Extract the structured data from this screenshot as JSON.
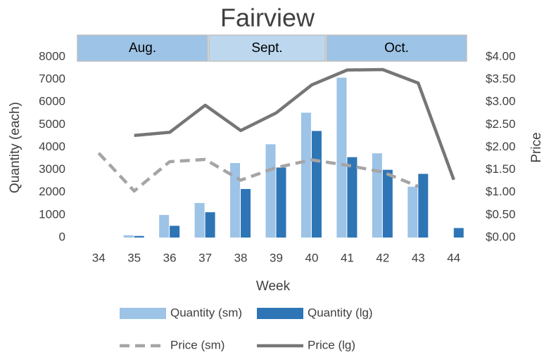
{
  "chart_data": {
    "type": "bar-line",
    "title": "Fairview",
    "month_bands": [
      {
        "label": "Aug.",
        "color": "#9dc3e6"
      },
      {
        "label": "Sept.",
        "color": "#bdd7ee"
      },
      {
        "label": "Oct.",
        "color": "#9dc3e6"
      }
    ],
    "x_label": "Week",
    "y_label": "Quantity (each)",
    "y2_label": "Price",
    "categories": [
      "34",
      "35",
      "36",
      "37",
      "38",
      "39",
      "40",
      "41",
      "42",
      "43",
      "44"
    ],
    "series": [
      {
        "name": "Quantity (sm)",
        "kind": "bar",
        "color": "#9dc3e6",
        "values": [
          0,
          100,
          1000,
          1530,
          3300,
          4130,
          5530,
          7080,
          3730,
          2250,
          0
        ]
      },
      {
        "name": "Quantity (lg)",
        "kind": "bar",
        "color": "#2e75b6",
        "values": [
          0,
          70,
          520,
          1120,
          2150,
          3100,
          4720,
          3560,
          3000,
          2820,
          420
        ]
      },
      {
        "name": "Price (sm)",
        "kind": "line",
        "dashed": true,
        "axis": "y2",
        "color": "#a5a5a5",
        "values": [
          1.87,
          1.03,
          1.68,
          1.73,
          1.27,
          1.55,
          1.72,
          1.6,
          1.45,
          1.13,
          null
        ]
      },
      {
        "name": "Price (lg)",
        "kind": "line",
        "dashed": false,
        "axis": "y2",
        "color": "#767676",
        "values": [
          null,
          2.26,
          2.33,
          2.93,
          2.37,
          2.76,
          3.38,
          3.71,
          3.72,
          3.42,
          1.28
        ]
      }
    ],
    "ylim": [
      0,
      8000
    ],
    "yticks": [
      0,
      1000,
      2000,
      3000,
      4000,
      5000,
      6000,
      7000,
      8000
    ],
    "y2lim": [
      0,
      4
    ],
    "y2ticks": [
      {
        "value": 0,
        "label": "$0.00"
      },
      {
        "value": 0.5,
        "label": "$0.50"
      },
      {
        "value": 1,
        "label": "$1.00"
      },
      {
        "value": 1.5,
        "label": "$1.50"
      },
      {
        "value": 2,
        "label": "$2.00"
      },
      {
        "value": 2.5,
        "label": "$2.50"
      },
      {
        "value": 3,
        "label": "$3.00"
      },
      {
        "value": 3.5,
        "label": "$3.50"
      },
      {
        "value": 4,
        "label": "$4.00"
      }
    ],
    "grid": false,
    "legend": "bottom"
  }
}
